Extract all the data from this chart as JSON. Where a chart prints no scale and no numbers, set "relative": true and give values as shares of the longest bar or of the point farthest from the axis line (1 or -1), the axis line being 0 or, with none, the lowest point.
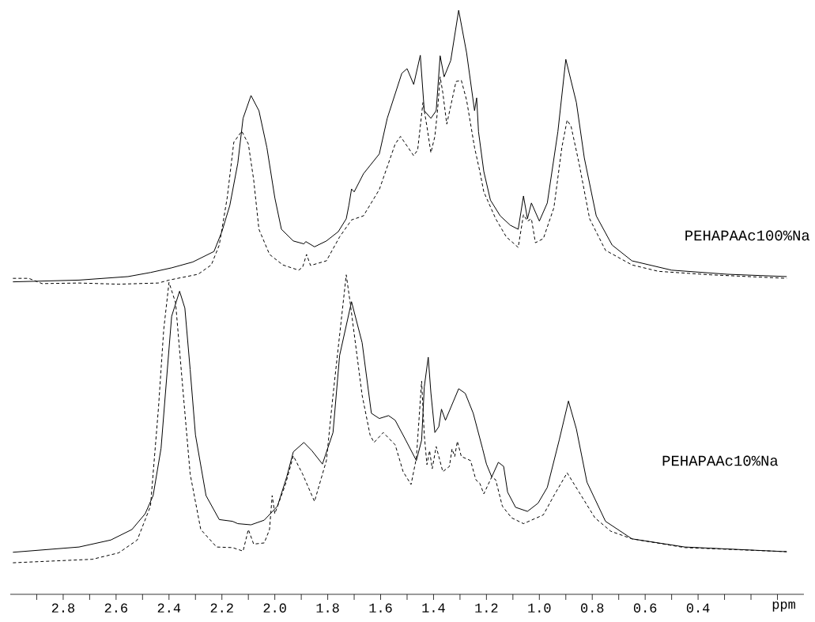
{
  "chart_data": {
    "type": "line",
    "relative": true,
    "xlim": [
      3.0,
      0.0
    ],
    "xlabel": "ppm",
    "annotations": [
      "PEHAPAAc100%Na",
      "PEHAPAAc10%Na"
    ],
    "xticks": [
      {
        "value": 2.9,
        "label": null
      },
      2.8,
      {
        "value": 2.7,
        "label": null
      },
      2.6,
      {
        "value": 2.5,
        "label": null
      },
      2.4,
      {
        "value": 2.3,
        "label": null
      },
      2.2,
      {
        "value": 2.1,
        "label": null
      },
      {
        "value": 2.0,
        "label": "2.0"
      },
      {
        "value": 1.9,
        "label": null
      },
      1.8,
      {
        "value": 1.7,
        "label": null
      },
      1.6,
      {
        "value": 1.5,
        "label": null
      },
      1.4,
      {
        "value": 1.3,
        "label": null
      },
      1.2,
      {
        "value": 1.1,
        "label": null
      },
      {
        "value": 1.0,
        "label": "1.0"
      },
      {
        "value": 0.9,
        "label": null
      },
      0.8,
      {
        "value": 0.7,
        "label": null
      },
      0.6,
      {
        "value": 0.5,
        "label": null
      },
      0.4,
      {
        "value": 0.3,
        "label": null
      },
      {
        "value": 0.2,
        "label": null
      },
      {
        "value": 0.1,
        "label": null
      }
    ],
    "series": [
      {
        "color": "#000000",
        "line_style": "solid",
        "x": [
          2.99,
          2.74,
          2.555,
          2.47,
          2.39,
          2.31,
          2.23,
          2.2,
          2.17,
          2.14,
          2.12,
          2.09,
          2.06,
          2.03,
          2.0,
          1.975,
          1.93,
          1.89,
          1.883,
          1.85,
          1.805,
          1.76,
          1.73,
          1.72,
          1.71,
          1.7,
          1.665,
          1.605,
          1.575,
          1.52,
          1.5,
          1.475,
          1.45,
          1.435,
          1.41,
          1.39,
          1.375,
          1.36,
          1.335,
          1.305,
          1.275,
          1.245,
          1.237,
          1.23,
          1.21,
          1.185,
          1.148,
          1.11,
          1.08,
          1.06,
          1.045,
          1.03,
          1.0,
          0.97,
          0.93,
          0.9,
          0.86,
          0.83,
          0.785,
          0.725,
          0.65,
          0.5,
          0.29,
          0.065
        ],
        "values": [
          0.535,
          0.538,
          0.544,
          0.551,
          0.559,
          0.569,
          0.587,
          0.621,
          0.666,
          0.738,
          0.815,
          0.854,
          0.828,
          0.765,
          0.679,
          0.625,
          0.605,
          0.6,
          0.604,
          0.595,
          0.605,
          0.621,
          0.643,
          0.666,
          0.694,
          0.689,
          0.72,
          0.754,
          0.815,
          0.892,
          0.9,
          0.873,
          0.923,
          0.828,
          0.815,
          0.828,
          0.922,
          0.886,
          0.914,
          1.0,
          0.927,
          0.828,
          0.85,
          0.792,
          0.724,
          0.675,
          0.648,
          0.632,
          0.625,
          0.682,
          0.643,
          0.67,
          0.639,
          0.67,
          0.792,
          0.916,
          0.842,
          0.747,
          0.648,
          0.598,
          0.571,
          0.555,
          0.548,
          0.544
        ]
      },
      {
        "color": "#000000",
        "line_style": "dashed",
        "x": [
          2.99,
          2.93,
          2.88,
          2.74,
          2.59,
          2.44,
          2.4,
          2.29,
          2.24,
          2.21,
          2.18,
          2.155,
          2.125,
          2.1,
          2.08,
          2.06,
          2.02,
          1.97,
          1.91,
          1.895,
          1.88,
          1.865,
          1.805,
          1.755,
          1.71,
          1.665,
          1.605,
          1.545,
          1.525,
          1.475,
          1.46,
          1.44,
          1.425,
          1.41,
          1.395,
          1.385,
          1.375,
          1.365,
          1.35,
          1.315,
          1.295,
          1.275,
          1.245,
          1.225,
          1.21,
          1.165,
          1.125,
          1.08,
          1.06,
          1.045,
          1.03,
          1.015,
          0.985,
          0.945,
          0.915,
          0.895,
          0.88,
          0.85,
          0.81,
          0.75,
          0.65,
          0.55,
          0.35,
          0.065
        ],
        "values": [
          0.541,
          0.541,
          0.532,
          0.533,
          0.531,
          0.533,
          0.538,
          0.548,
          0.564,
          0.598,
          0.679,
          0.774,
          0.793,
          0.771,
          0.71,
          0.625,
          0.582,
          0.564,
          0.555,
          0.56,
          0.582,
          0.563,
          0.571,
          0.612,
          0.641,
          0.648,
          0.693,
          0.771,
          0.784,
          0.751,
          0.761,
          0.842,
          0.801,
          0.756,
          0.784,
          0.828,
          0.886,
          0.859,
          0.805,
          0.878,
          0.88,
          0.846,
          0.765,
          0.724,
          0.689,
          0.643,
          0.612,
          0.594,
          0.65,
          0.639,
          0.643,
          0.602,
          0.609,
          0.662,
          0.765,
          0.812,
          0.801,
          0.738,
          0.643,
          0.589,
          0.564,
          0.553,
          0.547,
          0.541
        ]
      },
      {
        "color": "#000000",
        "line_style": "solid",
        "x": [
          2.99,
          2.74,
          2.62,
          2.54,
          2.49,
          2.46,
          2.43,
          2.41,
          2.39,
          2.36,
          2.34,
          2.32,
          2.3,
          2.26,
          2.21,
          2.16,
          2.14,
          2.09,
          2.04,
          1.99,
          1.955,
          1.93,
          1.89,
          1.86,
          1.82,
          1.78,
          1.755,
          1.71,
          1.67,
          1.635,
          1.605,
          1.57,
          1.545,
          1.505,
          1.465,
          1.445,
          1.435,
          1.42,
          1.41,
          1.395,
          1.38,
          1.37,
          1.355,
          1.305,
          1.28,
          1.25,
          1.215,
          1.2,
          1.18,
          1.155,
          1.135,
          1.12,
          1.09,
          1.045,
          1.005,
          0.97,
          0.925,
          0.89,
          0.86,
          0.82,
          0.75,
          0.65,
          0.45,
          0.065
        ],
        "values": [
          0.072,
          0.081,
          0.093,
          0.111,
          0.138,
          0.169,
          0.25,
          0.364,
          0.476,
          0.519,
          0.49,
          0.385,
          0.273,
          0.169,
          0.128,
          0.125,
          0.121,
          0.119,
          0.127,
          0.151,
          0.201,
          0.244,
          0.26,
          0.246,
          0.223,
          0.277,
          0.409,
          0.501,
          0.431,
          0.31,
          0.301,
          0.306,
          0.298,
          0.264,
          0.229,
          0.264,
          0.355,
          0.406,
          0.345,
          0.277,
          0.287,
          0.317,
          0.298,
          0.352,
          0.344,
          0.31,
          0.25,
          0.223,
          0.201,
          0.226,
          0.219,
          0.175,
          0.149,
          0.142,
          0.156,
          0.183,
          0.264,
          0.331,
          0.283,
          0.192,
          0.125,
          0.095,
          0.081,
          0.073
        ]
      },
      {
        "color": "#000000",
        "line_style": "dashed",
        "x": [
          2.99,
          2.69,
          2.59,
          2.52,
          2.47,
          2.44,
          2.42,
          2.4,
          2.375,
          2.35,
          2.32,
          2.28,
          2.22,
          2.16,
          2.12,
          2.1,
          2.08,
          2.04,
          2.02,
          2.01,
          2.0,
          1.96,
          1.93,
          1.895,
          1.85,
          1.805,
          1.78,
          1.73,
          1.715,
          1.67,
          1.64,
          1.625,
          1.59,
          1.545,
          1.515,
          1.485,
          1.465,
          1.445,
          1.435,
          1.425,
          1.415,
          1.405,
          1.39,
          1.365,
          1.34,
          1.33,
          1.32,
          1.31,
          1.295,
          1.26,
          1.24,
          1.225,
          1.21,
          1.18,
          1.165,
          1.14,
          1.105,
          1.06,
          0.985,
          0.945,
          0.895,
          0.85,
          0.79,
          0.73,
          0.65,
          0.45,
          0.065
        ],
        "values": [
          0.054,
          0.06,
          0.071,
          0.093,
          0.151,
          0.318,
          0.453,
          0.534,
          0.499,
          0.364,
          0.206,
          0.111,
          0.081,
          0.08,
          0.074,
          0.111,
          0.086,
          0.088,
          0.111,
          0.169,
          0.138,
          0.188,
          0.237,
          0.206,
          0.159,
          0.229,
          0.341,
          0.547,
          0.499,
          0.341,
          0.273,
          0.26,
          0.277,
          0.256,
          0.21,
          0.188,
          0.233,
          0.365,
          0.273,
          0.222,
          0.246,
          0.215,
          0.253,
          0.21,
          0.219,
          0.249,
          0.236,
          0.262,
          0.236,
          0.229,
          0.196,
          0.19,
          0.172,
          0.201,
          0.196,
          0.151,
          0.131,
          0.121,
          0.136,
          0.169,
          0.208,
          0.175,
          0.131,
          0.108,
          0.095,
          0.08,
          0.073
        ]
      }
    ]
  }
}
